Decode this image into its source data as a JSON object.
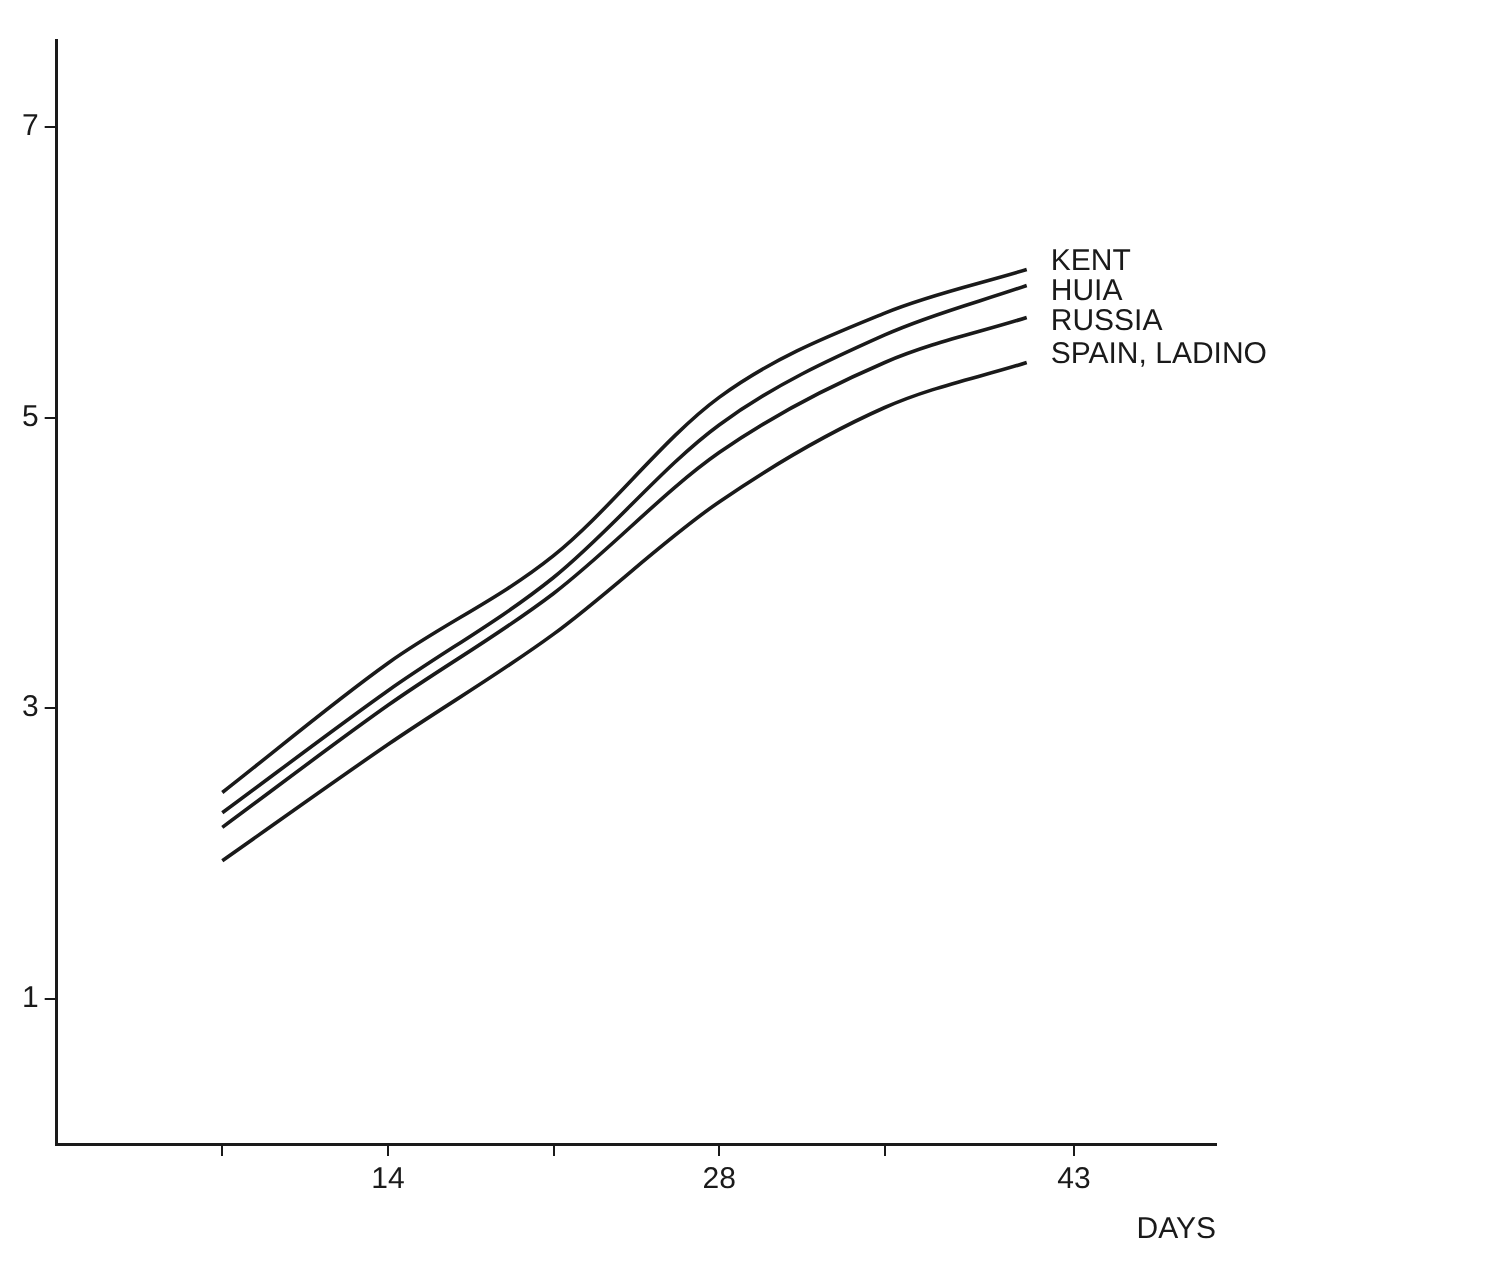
{
  "chart_data": {
    "type": "line",
    "xlabel": "DAYS",
    "x": [
      7,
      14,
      21,
      28,
      35,
      41
    ],
    "series": [
      {
        "name": "KENT",
        "color": "#1a1a1a",
        "values": [
          2.42,
          3.31,
          4.05,
          5.14,
          5.72,
          6.02
        ]
      },
      {
        "name": "HUIA",
        "color": "#1a1a1a",
        "values": [
          2.28,
          3.12,
          3.9,
          4.95,
          5.57,
          5.91
        ]
      },
      {
        "name": "RUSSIA",
        "color": "#1a1a1a",
        "values": [
          2.18,
          3.02,
          3.79,
          4.76,
          5.38,
          5.69
        ]
      },
      {
        "name": "SPAIN, LADINO",
        "color": "#1a1a1a",
        "values": [
          1.95,
          2.75,
          3.51,
          4.42,
          5.07,
          5.38
        ]
      }
    ],
    "xlim": [
      0,
      49
    ],
    "xticks": [
      {
        "value": 7,
        "label": null
      },
      14,
      {
        "value": 21,
        "label": null
      },
      28,
      {
        "value": 35,
        "label": null
      },
      43
    ],
    "ylim": [
      0,
      7.6
    ],
    "yticks": [
      1,
      3,
      5,
      7
    ],
    "grid": false,
    "legend": false,
    "marker": "none",
    "line_style": "solid"
  }
}
